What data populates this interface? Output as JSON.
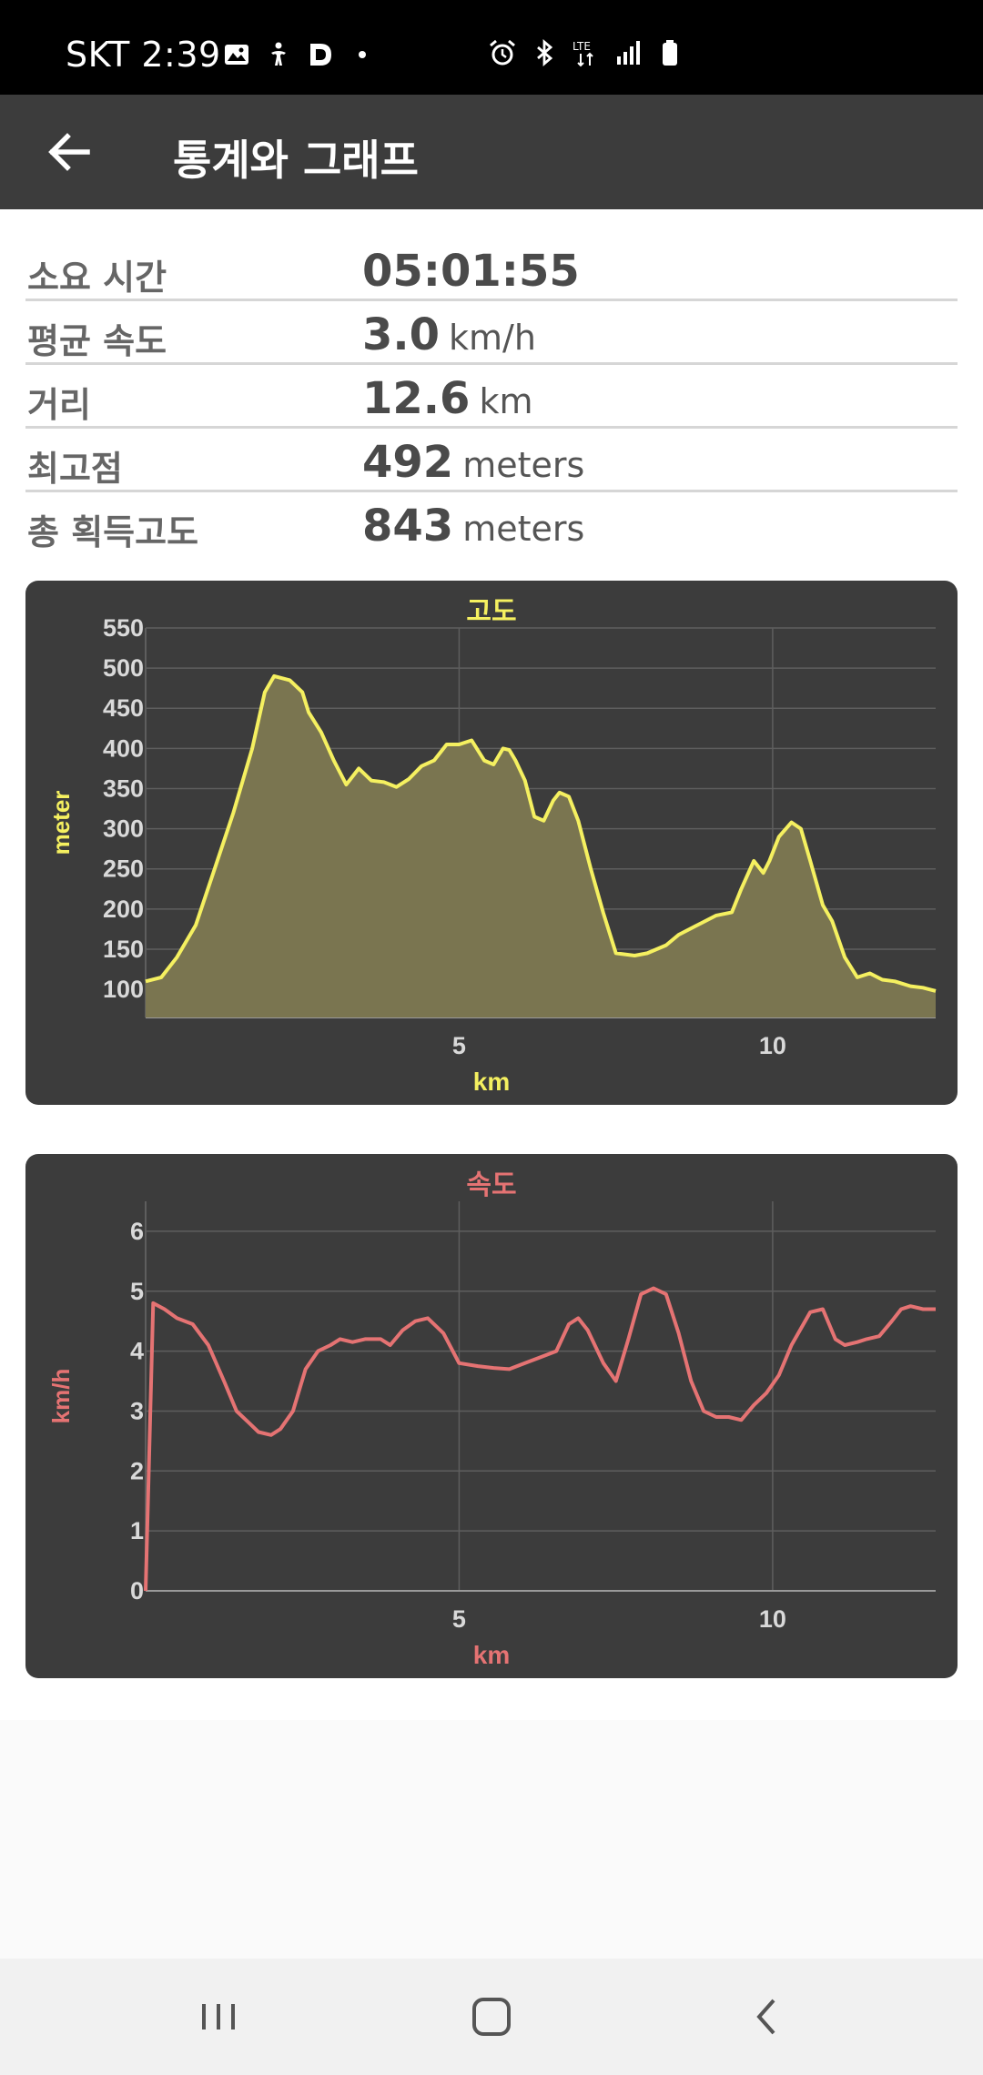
{
  "status_bar": {
    "carrier_time": "SKT 2:39",
    "left_icons": [
      "gallery-icon",
      "accessibility-icon",
      "d-app-icon",
      "dot-icon"
    ],
    "right_icons": [
      "alarm-icon",
      "bluetooth-icon",
      "lte-icon",
      "signal-icon",
      "battery-icon"
    ],
    "lte_label": "LTE"
  },
  "app_bar": {
    "title": "통계와 그래프"
  },
  "stats": [
    {
      "label": "소요 시간",
      "value": "05:01:55",
      "unit": ""
    },
    {
      "label": "평균 속도",
      "value": "3.0",
      "unit": "km/h"
    },
    {
      "label": "거리",
      "value": "12.6",
      "unit": "km"
    },
    {
      "label": "최고점",
      "value": "492",
      "unit": "meters"
    },
    {
      "label": "총 획득고도",
      "value": "843",
      "unit": "meters"
    }
  ],
  "colors": {
    "card_bg": "#3c3c3c",
    "grid": "#5e5e5e",
    "tick_text": "#d9d9d9",
    "elevation": "#f5f060",
    "elevation_fill": "#7a7550",
    "speed": "#e57373"
  },
  "chart_data": [
    {
      "type": "area",
      "title": "고도",
      "xlabel": "km",
      "ylabel": "meter",
      "xlim": [
        0,
        12.6
      ],
      "ylim": [
        65,
        550
      ],
      "xticks": [
        5,
        10
      ],
      "yticks": [
        100,
        150,
        200,
        250,
        300,
        350,
        400,
        450,
        500,
        550
      ],
      "grid": true,
      "x": [
        0,
        0.25,
        0.5,
        0.8,
        1.1,
        1.4,
        1.7,
        1.9,
        2.05,
        2.3,
        2.5,
        2.6,
        2.8,
        3.0,
        3.2,
        3.4,
        3.6,
        3.8,
        4.0,
        4.2,
        4.4,
        4.6,
        4.8,
        5.0,
        5.2,
        5.4,
        5.55,
        5.7,
        5.8,
        5.9,
        6.05,
        6.2,
        6.35,
        6.5,
        6.6,
        6.75,
        6.9,
        7.1,
        7.3,
        7.5,
        7.8,
        8.0,
        8.3,
        8.5,
        8.8,
        9.1,
        9.35,
        9.5,
        9.7,
        9.85,
        9.95,
        10.1,
        10.3,
        10.45,
        10.6,
        10.8,
        10.95,
        11.15,
        11.35,
        11.55,
        11.75,
        11.95,
        12.2,
        12.4,
        12.6
      ],
      "y": [
        110,
        115,
        140,
        180,
        250,
        320,
        400,
        470,
        490,
        485,
        470,
        445,
        420,
        385,
        355,
        375,
        360,
        358,
        352,
        362,
        378,
        385,
        405,
        405,
        410,
        385,
        380,
        400,
        398,
        385,
        360,
        315,
        310,
        335,
        345,
        340,
        310,
        250,
        195,
        145,
        142,
        145,
        155,
        168,
        180,
        192,
        196,
        225,
        260,
        245,
        260,
        290,
        308,
        300,
        260,
        205,
        185,
        140,
        115,
        120,
        112,
        110,
        104,
        102,
        98
      ]
    },
    {
      "type": "line",
      "title": "속도",
      "xlabel": "km",
      "ylabel": "km/h",
      "xlim": [
        0,
        12.6
      ],
      "ylim": [
        0,
        6.5
      ],
      "xticks": [
        5,
        10
      ],
      "yticks": [
        0,
        1,
        2,
        3,
        4,
        5,
        6
      ],
      "grid": true,
      "x": [
        0,
        0.12,
        0.3,
        0.5,
        0.75,
        1.0,
        1.25,
        1.45,
        1.65,
        1.8,
        2.0,
        2.15,
        2.35,
        2.55,
        2.75,
        2.95,
        3.1,
        3.3,
        3.5,
        3.75,
        3.9,
        4.1,
        4.3,
        4.5,
        4.75,
        5.0,
        5.3,
        5.55,
        5.8,
        6.05,
        6.3,
        6.55,
        6.75,
        6.9,
        7.05,
        7.3,
        7.5,
        7.7,
        7.9,
        8.1,
        8.3,
        8.5,
        8.7,
        8.9,
        9.1,
        9.3,
        9.5,
        9.7,
        9.9,
        10.1,
        10.3,
        10.6,
        10.8,
        11.0,
        11.15,
        11.35,
        11.5,
        11.7,
        11.9,
        12.05,
        12.2,
        12.4,
        12.6
      ],
      "y": [
        0,
        4.8,
        4.7,
        4.55,
        4.45,
        4.1,
        3.5,
        3.0,
        2.8,
        2.65,
        2.6,
        2.7,
        3.0,
        3.7,
        4.0,
        4.1,
        4.2,
        4.15,
        4.2,
        4.2,
        4.1,
        4.35,
        4.5,
        4.55,
        4.3,
        3.8,
        3.75,
        3.72,
        3.7,
        3.8,
        3.9,
        4.0,
        4.45,
        4.55,
        4.35,
        3.8,
        3.5,
        4.2,
        4.95,
        5.05,
        4.95,
        4.3,
        3.5,
        3.0,
        2.9,
        2.9,
        2.85,
        3.1,
        3.3,
        3.6,
        4.1,
        4.65,
        4.7,
        4.2,
        4.1,
        4.15,
        4.2,
        4.25,
        4.5,
        4.7,
        4.75,
        4.7,
        4.7
      ]
    }
  ],
  "nav": {
    "icons": [
      "recent-apps-icon",
      "home-icon",
      "back-nav-icon"
    ]
  }
}
